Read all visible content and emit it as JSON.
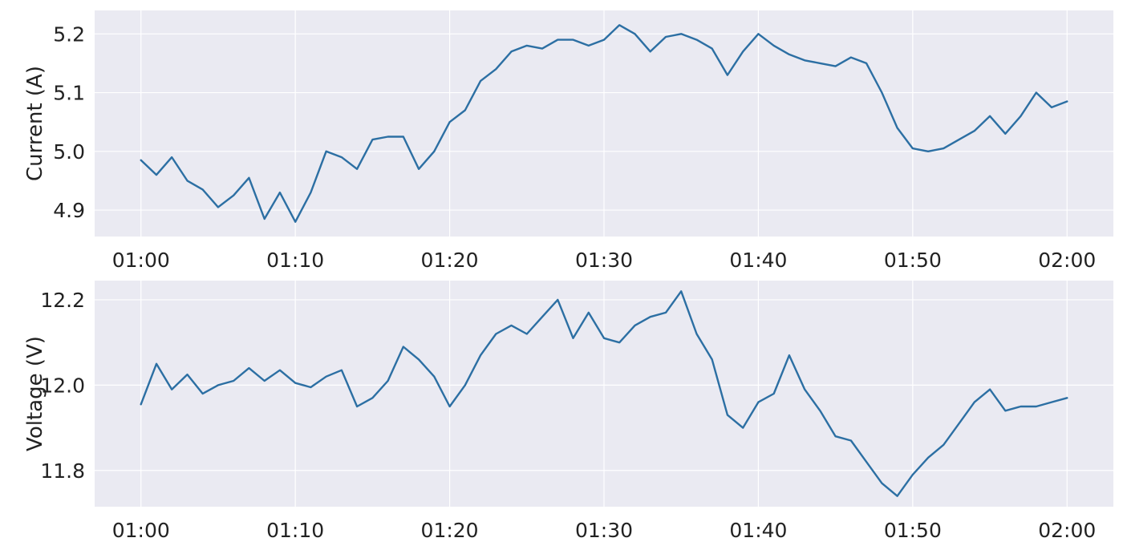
{
  "chart_data": [
    {
      "type": "line",
      "ylabel": "Current (A)",
      "xlabel": "",
      "x_tick_labels": [
        "01:00",
        "01:10",
        "01:20",
        "01:30",
        "01:40",
        "01:50",
        "02:00"
      ],
      "y_ticks": [
        4.9,
        5.0,
        5.1,
        5.2
      ],
      "y_tick_labels": [
        "4.9",
        "5.0",
        "5.1",
        "5.2"
      ],
      "xlim": [
        "00:57",
        "02:03"
      ],
      "ylim": [
        4.855,
        5.24
      ],
      "grid": true,
      "series": [
        {
          "color": "#2c6fa3",
          "x": [
            "01:00",
            "01:01",
            "01:02",
            "01:03",
            "01:04",
            "01:05",
            "01:06",
            "01:07",
            "01:08",
            "01:09",
            "01:10",
            "01:11",
            "01:12",
            "01:13",
            "01:14",
            "01:15",
            "01:16",
            "01:17",
            "01:18",
            "01:19",
            "01:20",
            "01:21",
            "01:22",
            "01:23",
            "01:24",
            "01:25",
            "01:26",
            "01:27",
            "01:28",
            "01:29",
            "01:30",
            "01:31",
            "01:32",
            "01:33",
            "01:34",
            "01:35",
            "01:36",
            "01:37",
            "01:38",
            "01:39",
            "01:40",
            "01:41",
            "01:42",
            "01:43",
            "01:44",
            "01:45",
            "01:46",
            "01:47",
            "01:48",
            "01:49",
            "01:50",
            "01:51",
            "01:52",
            "01:53",
            "01:54",
            "01:55",
            "01:56",
            "01:57",
            "01:58",
            "01:59",
            "02:00"
          ],
          "y": [
            4.985,
            4.96,
            4.99,
            4.95,
            4.935,
            4.905,
            4.925,
            4.955,
            4.885,
            4.93,
            4.88,
            4.93,
            5.0,
            4.99,
            4.97,
            5.02,
            5.025,
            5.025,
            4.97,
            5.0,
            5.05,
            5.07,
            5.12,
            5.14,
            5.17,
            5.18,
            5.175,
            5.19,
            5.19,
            5.18,
            5.19,
            5.215,
            5.2,
            5.17,
            5.195,
            5.2,
            5.19,
            5.175,
            5.13,
            5.17,
            5.2,
            5.18,
            5.165,
            5.155,
            5.15,
            5.145,
            5.16,
            5.15,
            5.1,
            5.04,
            5.005,
            5.0,
            5.005,
            5.02,
            5.035,
            5.06,
            5.03,
            5.06,
            5.1,
            5.075,
            5.085
          ]
        }
      ]
    },
    {
      "type": "line",
      "ylabel": "Voltage (V)",
      "xlabel": "",
      "x_tick_labels": [
        "01:00",
        "01:10",
        "01:20",
        "01:30",
        "01:40",
        "01:50",
        "02:00"
      ],
      "y_ticks": [
        11.8,
        12.0,
        12.2
      ],
      "y_tick_labels": [
        "11.8",
        "12.0",
        "12.2"
      ],
      "xlim": [
        "00:57",
        "02:03"
      ],
      "ylim": [
        11.715,
        12.245
      ],
      "grid": true,
      "series": [
        {
          "color": "#2c6fa3",
          "x": [
            "01:00",
            "01:01",
            "01:02",
            "01:03",
            "01:04",
            "01:05",
            "01:06",
            "01:07",
            "01:08",
            "01:09",
            "01:10",
            "01:11",
            "01:12",
            "01:13",
            "01:14",
            "01:15",
            "01:16",
            "01:17",
            "01:18",
            "01:19",
            "01:20",
            "01:21",
            "01:22",
            "01:23",
            "01:24",
            "01:25",
            "01:26",
            "01:27",
            "01:28",
            "01:29",
            "01:30",
            "01:31",
            "01:32",
            "01:33",
            "01:34",
            "01:35",
            "01:36",
            "01:37",
            "01:38",
            "01:39",
            "01:40",
            "01:41",
            "01:42",
            "01:43",
            "01:44",
            "01:45",
            "01:46",
            "01:47",
            "01:48",
            "01:49",
            "01:50",
            "01:51",
            "01:52",
            "01:53",
            "01:54",
            "01:55",
            "01:56",
            "01:57",
            "01:58",
            "01:59",
            "02:00"
          ],
          "y": [
            11.955,
            12.05,
            11.99,
            12.025,
            11.98,
            12.0,
            12.01,
            12.04,
            12.01,
            12.035,
            12.005,
            11.995,
            12.02,
            12.035,
            11.95,
            11.97,
            12.01,
            12.09,
            12.06,
            12.02,
            11.95,
            12.0,
            12.07,
            12.12,
            12.14,
            12.12,
            12.16,
            12.2,
            12.11,
            12.17,
            12.11,
            12.1,
            12.14,
            12.16,
            12.17,
            12.22,
            12.12,
            12.06,
            11.93,
            11.9,
            11.96,
            11.98,
            12.07,
            11.99,
            11.94,
            11.88,
            11.87,
            11.82,
            11.77,
            11.74,
            11.79,
            11.83,
            11.86,
            11.91,
            11.96,
            11.99,
            11.94,
            11.95,
            11.95,
            11.96,
            11.97
          ]
        }
      ]
    }
  ]
}
